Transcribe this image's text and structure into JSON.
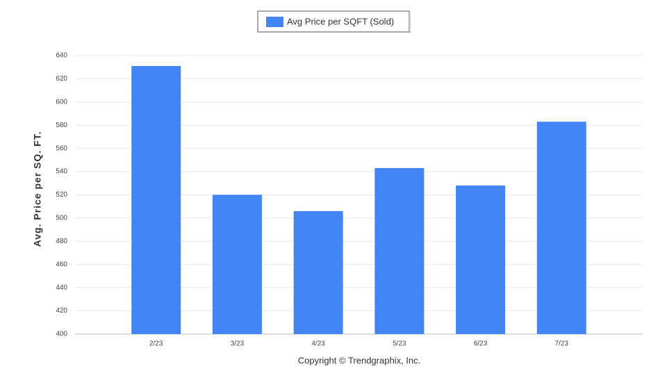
{
  "chart_data": {
    "type": "bar",
    "y_label": "Avg. Price per SQ. FT.",
    "x_label": "Copyright © Trendgraphix, Inc.",
    "categories": [
      "2/23",
      "3/23",
      "4/23",
      "5/23",
      "6/23",
      "7/23"
    ],
    "series": [
      {
        "name": "Avg Price per SQFT (Sold)",
        "color": "#4285f4",
        "values": [
          631,
          520,
          506,
          543,
          528,
          583
        ]
      }
    ],
    "ylim": [
      400,
      640
    ],
    "yticks": [
      400,
      420,
      440,
      460,
      480,
      500,
      520,
      540,
      560,
      580,
      600,
      620,
      640
    ],
    "grid": true,
    "legend": "top"
  }
}
